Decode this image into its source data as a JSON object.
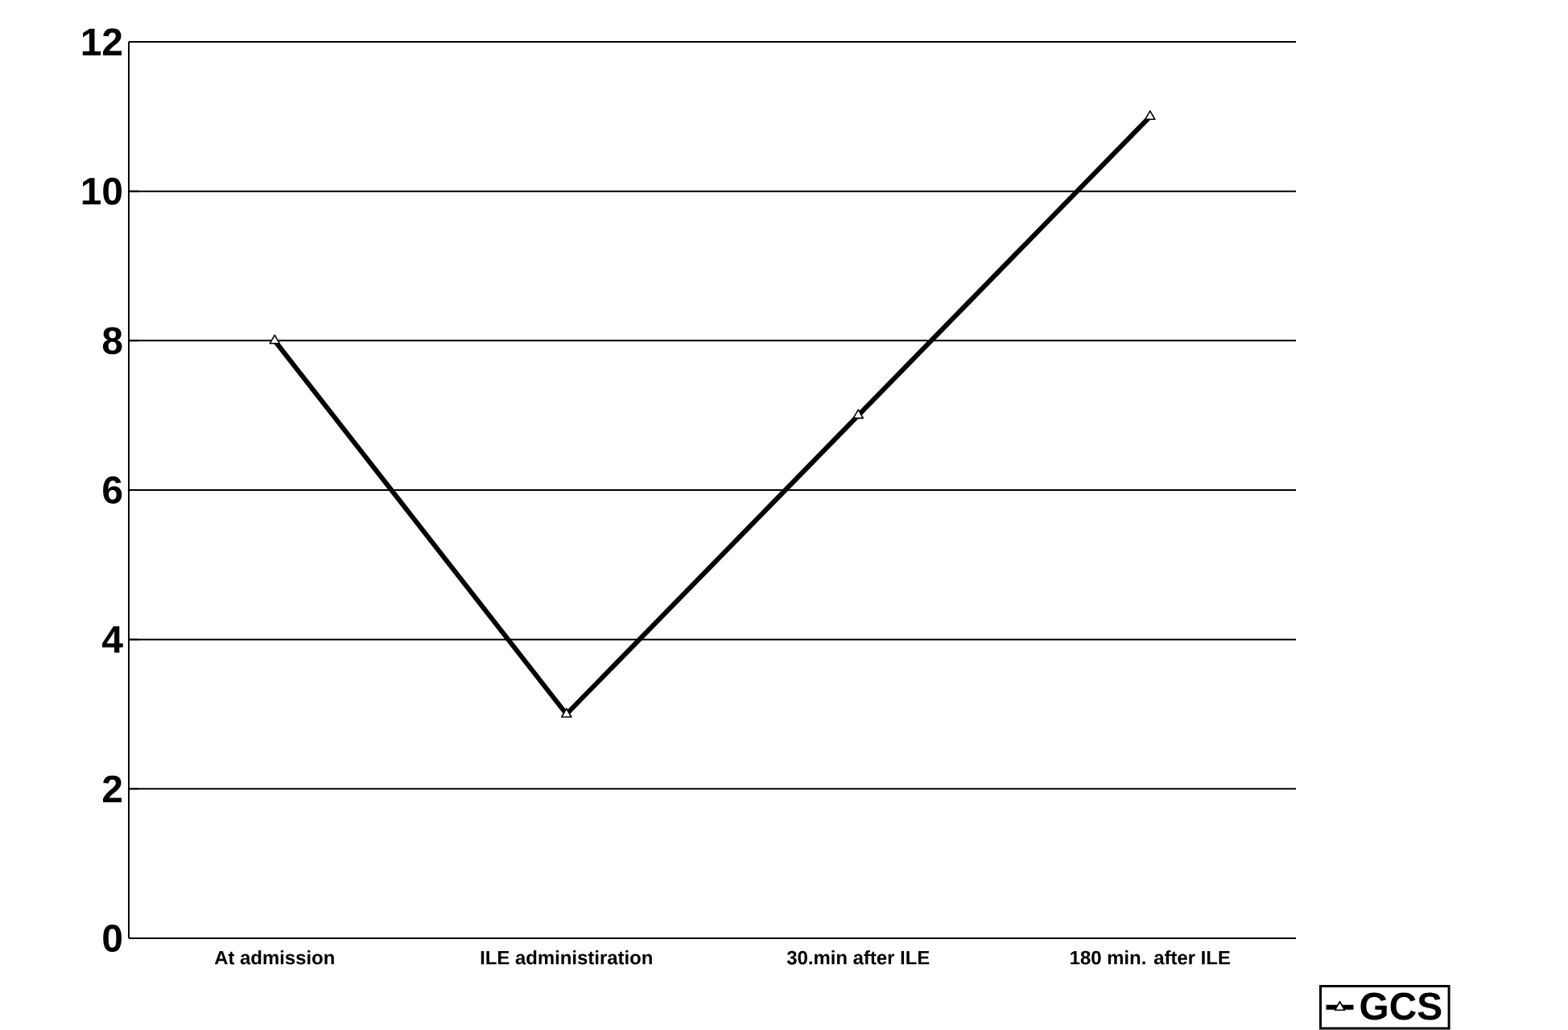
{
  "chart_data": {
    "type": "line",
    "categories": [
      "At admission",
      "ILE administiration",
      "30.min after ILE",
      "180 min. after ILE"
    ],
    "series": [
      {
        "name": "GCS",
        "color": "#000000",
        "values": [
          8,
          3,
          7,
          11
        ]
      }
    ],
    "ylim": [
      0,
      12
    ],
    "yticks": [
      0,
      2,
      4,
      6,
      8,
      10,
      12
    ],
    "grid": "y",
    "legend": "bottom right",
    "marker": "triangle",
    "line_style": "solid"
  }
}
